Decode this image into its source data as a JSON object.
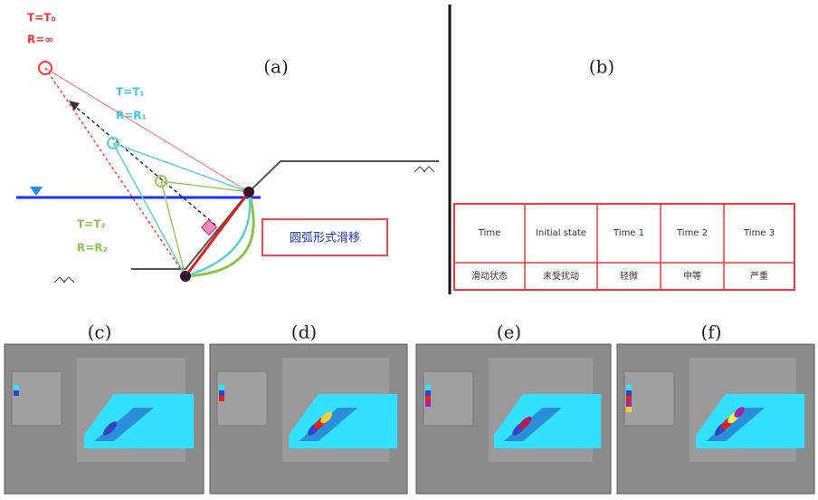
{
  "panel_a": {
    "label": "(a)",
    "params": [
      {
        "t": "T=T₀",
        "r": "R=∞"
      },
      {
        "t": "T=T₁",
        "r": "R=R₁"
      },
      {
        "t": "T=T₂",
        "r": "R=R₂"
      }
    ],
    "box_text": "圆弧形式滑移"
  },
  "panel_b": {
    "label": "(b)",
    "table": {
      "header": [
        "Time",
        "Initial state",
        "Time 1",
        "Time 2",
        "Time 3"
      ],
      "rows": [
        [
          "滑动状态",
          "未受扰动",
          "轻微",
          "中等",
          "严重"
        ]
      ]
    }
  },
  "panels": [
    "(c)",
    "(d)",
    "(e)",
    "(f)"
  ]
}
